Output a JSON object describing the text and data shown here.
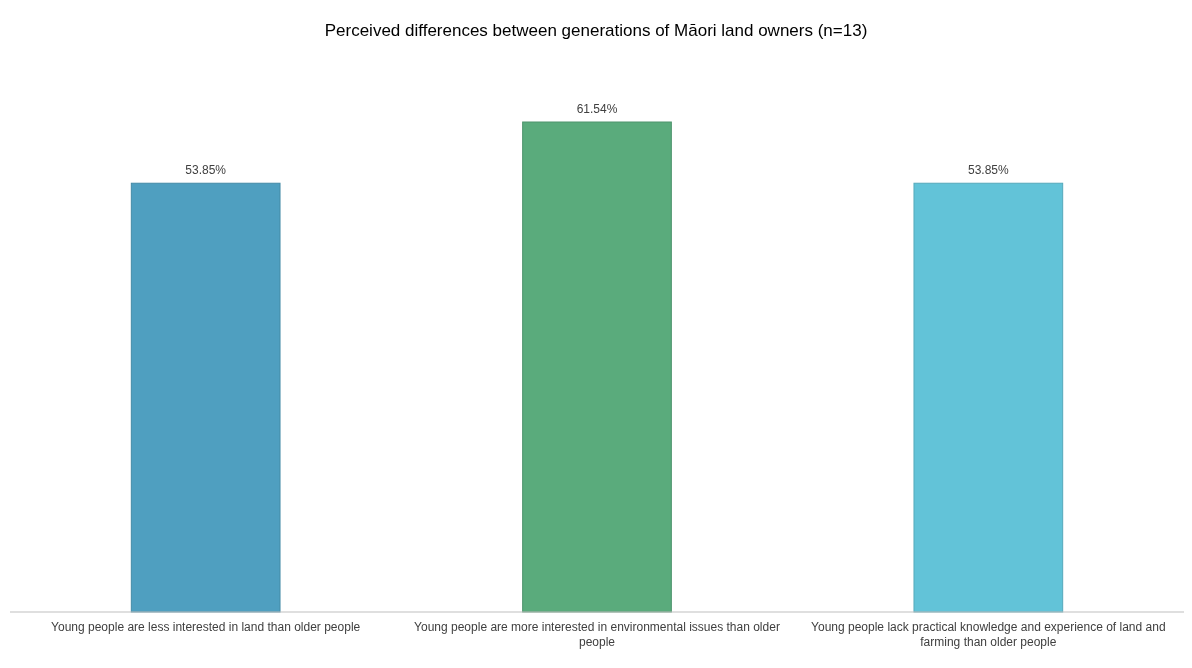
{
  "chart_data": {
    "type": "bar",
    "title": "Perceived differences between generations of Māori land owners (n=13)",
    "categories": [
      "Young people are less interested in land than older people",
      "Young people are more interested in environmental issues than older people",
      "Young people lack practical knowledge and experience of land and farming than older people"
    ],
    "values": [
      53.85,
      61.54,
      53.85
    ],
    "colors": [
      "#4f9fc0",
      "#5aab7c",
      "#62c3d8"
    ],
    "value_labels": [
      "53.85%",
      "61.54%",
      "53.85%"
    ],
    "tick_labels": "x"
  }
}
